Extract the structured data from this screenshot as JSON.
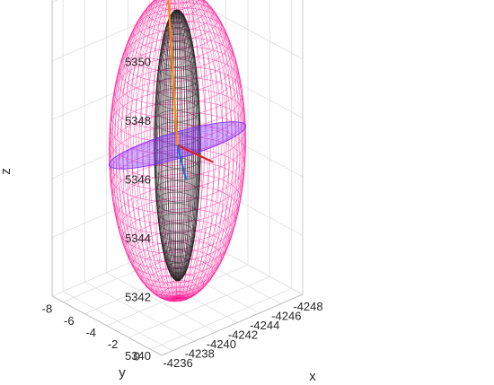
{
  "chart_data": {
    "type": "3d-ellipsoid-wireframe",
    "title": "",
    "xlabel": "x",
    "ylabel": "y",
    "zlabel": "z",
    "xlim": [
      -4248,
      -4235
    ],
    "ylim": [
      -9,
      1
    ],
    "zlim": [
      5340,
      5350.5
    ],
    "x_ticks": [
      -4236,
      -4238,
      -4240,
      -4242,
      -4244,
      -4246,
      -4248
    ],
    "y_ticks": [
      0,
      -2,
      -4,
      -6,
      -8
    ],
    "z_ticks": [
      5340,
      5342,
      5344,
      5346,
      5348,
      5350
    ],
    "grid": true,
    "series": [
      {
        "type": "wireframe-ellipsoid",
        "color": "#ff1493",
        "center": [
          -4241.5,
          -4,
          5345.1
        ],
        "semi_axes": [
          5,
          3.8,
          5.2
        ]
      },
      {
        "type": "wireframe-ellipsoid",
        "color": "#222222",
        "center": [
          -4241.5,
          -4,
          5345.1
        ],
        "semi_axes": [
          1.5,
          1.5,
          4.6
        ]
      },
      {
        "type": "filled-ellipse",
        "color": "#7b2cff",
        "center": [
          -4241.5,
          -4,
          5345.1
        ],
        "semi_axes": [
          5,
          3.8,
          0.5
        ]
      },
      {
        "type": "axis-line",
        "color": "#ff8c00",
        "from": [
          -4241.5,
          -4,
          5345.1
        ],
        "to": [
          -4240.5,
          -4,
          5351.2
        ]
      },
      {
        "type": "axis-line",
        "color": "#e02020",
        "from": [
          -4241.5,
          -4,
          5345.1
        ],
        "to": [
          -4244.8,
          -4,
          5344.0
        ]
      },
      {
        "type": "axis-line",
        "color": "#1f6fe0",
        "from": [
          -4241.5,
          -4,
          5345.1
        ],
        "to": [
          -4242.3,
          -4,
          5343.8
        ]
      }
    ]
  }
}
